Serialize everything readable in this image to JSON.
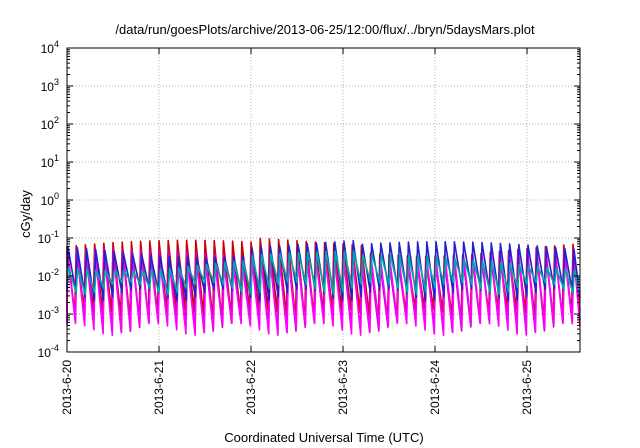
{
  "chart_data": {
    "type": "line",
    "title": "/data/run/goesPlots/archive/2013-06-25/12:00/flux/../bryn/5daysMars.plot",
    "xlabel": "Coordinated Universal Time (UTC)",
    "ylabel": "cGy/day",
    "yscale": "log",
    "ylim": [
      0.0001,
      10000
    ],
    "xlim": [
      "2013-06-20",
      "2013-06-25 14:00"
    ],
    "grid": true,
    "yticks": [
      {
        "base": "10",
        "exp": "-4"
      },
      {
        "base": "10",
        "exp": "-3"
      },
      {
        "base": "10",
        "exp": "-2"
      },
      {
        "base": "10",
        "exp": "-1"
      },
      {
        "base": "10",
        "exp": "0"
      },
      {
        "base": "10",
        "exp": "1"
      },
      {
        "base": "10",
        "exp": "2"
      },
      {
        "base": "10",
        "exp": "3"
      },
      {
        "base": "10",
        "exp": "4"
      }
    ],
    "xticks": [
      "2013-6-20",
      "2013-6-21",
      "2013-6-22",
      "2013-6-23",
      "2013-6-24",
      "2013-6-25"
    ],
    "series": [
      {
        "color": "#cc0000",
        "peak": 0.06,
        "trough": 0.0012,
        "teeth_per_day": 10
      },
      {
        "color": "#cc00cc",
        "peak": 0.035,
        "trough": 0.0006,
        "teeth_per_day": 10
      },
      {
        "color": "#ff00ff",
        "peak": 0.03,
        "trough": 0.0005,
        "teeth_per_day": 10
      },
      {
        "color": "#2222cc",
        "peak": 0.055,
        "trough": 0.004,
        "teeth_per_day": 10
      },
      {
        "color": "#00aaaa",
        "peak": 0.025,
        "trough": 0.006,
        "teeth_per_day": 10
      }
    ]
  }
}
